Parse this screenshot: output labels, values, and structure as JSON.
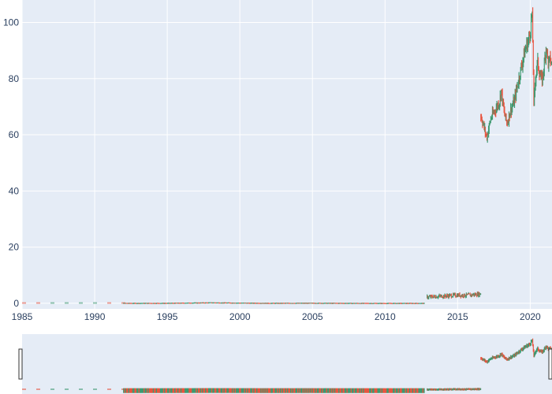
{
  "colors": {
    "plot_bg": "#e5ecf6",
    "grid": "#ffffff",
    "text": "#2a3f5f",
    "increasing": "#3d9970",
    "decreasing": "#e8543f"
  },
  "chart_data": {
    "type": "candlestick",
    "title": "",
    "xlabel": "",
    "ylabel": "",
    "x_axis": {
      "type": "date",
      "range": [
        "1985-01-01",
        "2021-07-01"
      ],
      "ticks": [
        "1985",
        "1990",
        "1995",
        "2000",
        "2005",
        "2010",
        "2015",
        "2020"
      ]
    },
    "y_axis": {
      "range": [
        -2,
        108
      ],
      "ticks": [
        "0",
        "20",
        "40",
        "60",
        "80",
        "100"
      ]
    },
    "grid": true,
    "rangeslider": true,
    "legend": "none",
    "segments": [
      {
        "start": "1985-01-01",
        "end": "1991-12-31",
        "style": "sparse",
        "points": [
          [
            1985,
            0.1
          ],
          [
            1991.9,
            0.1
          ]
        ]
      },
      {
        "start": "1992-01-01",
        "end": "2012-10-01",
        "style": "flat",
        "points": [
          [
            1992,
            0.1
          ],
          [
            1995,
            0.12
          ],
          [
            1998,
            0.3
          ],
          [
            2000,
            0.2
          ],
          [
            2002,
            0.12
          ],
          [
            2005,
            0.15
          ],
          [
            2008,
            0.1
          ],
          [
            2010,
            0.08
          ],
          [
            2012.7,
            0.1
          ]
        ]
      },
      {
        "start": "2012-11-01",
        "end": "2016-07-01",
        "style": "dense",
        "points": [
          [
            2012.9,
            2.2
          ],
          [
            2013.5,
            2.4
          ],
          [
            2014.2,
            2.6
          ],
          [
            2015,
            2.9
          ],
          [
            2015.6,
            2.8
          ],
          [
            2016.2,
            3.1
          ],
          [
            2016.6,
            3.4
          ]
        ]
      },
      {
        "start": "2016-07-01",
        "end": "2021-07-01",
        "style": "dense",
        "points": [
          [
            2016.6,
            67
          ],
          [
            2016.8,
            63
          ],
          [
            2017.0,
            59
          ],
          [
            2017.3,
            66
          ],
          [
            2017.6,
            69
          ],
          [
            2017.9,
            72
          ],
          [
            2018.0,
            76
          ],
          [
            2018.2,
            68
          ],
          [
            2018.4,
            64
          ],
          [
            2018.6,
            68
          ],
          [
            2018.9,
            72
          ],
          [
            2019.1,
            77
          ],
          [
            2019.3,
            82
          ],
          [
            2019.5,
            87
          ],
          [
            2019.7,
            91
          ],
          [
            2019.9,
            94
          ],
          [
            2020.0,
            97
          ],
          [
            2020.08,
            101
          ],
          [
            2020.12,
            104
          ],
          [
            2020.2,
            88
          ],
          [
            2020.25,
            70
          ],
          [
            2020.35,
            80
          ],
          [
            2020.5,
            86
          ],
          [
            2020.65,
            82
          ],
          [
            2020.8,
            79
          ],
          [
            2020.95,
            84
          ],
          [
            2021.1,
            92
          ],
          [
            2021.25,
            85
          ],
          [
            2021.4,
            87
          ],
          [
            2021.5,
            84
          ]
        ]
      }
    ]
  }
}
